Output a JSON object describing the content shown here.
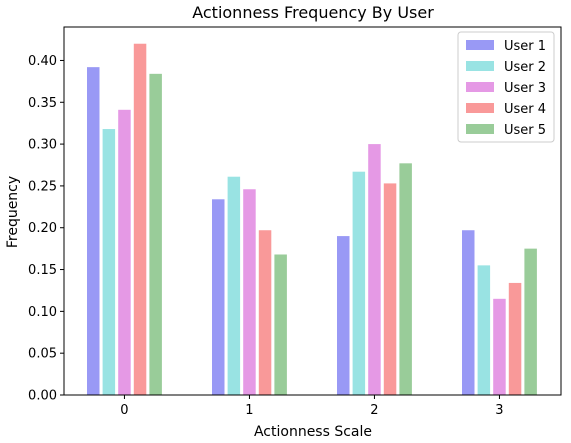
{
  "chart_data": {
    "type": "bar",
    "title": "Actionness Frequency By User",
    "xlabel": "Actionness Scale",
    "ylabel": "Frequency",
    "categories": [
      "0",
      "1",
      "2",
      "3"
    ],
    "ylim": [
      0,
      0.44
    ],
    "yticks": [
      "0.00",
      "0.05",
      "0.10",
      "0.15",
      "0.20",
      "0.25",
      "0.30",
      "0.35",
      "0.40"
    ],
    "grid": false,
    "legend_position": "top-right",
    "series": [
      {
        "name": "User 1",
        "color": "#9999f5",
        "values": [
          0.392,
          0.234,
          0.19,
          0.197
        ]
      },
      {
        "name": "User 2",
        "color": "#99e3e3",
        "values": [
          0.318,
          0.261,
          0.267,
          0.155
        ]
      },
      {
        "name": "User 3",
        "color": "#e599e5",
        "values": [
          0.341,
          0.246,
          0.3,
          0.115
        ]
      },
      {
        "name": "User 4",
        "color": "#f99999",
        "values": [
          0.42,
          0.197,
          0.253,
          0.134
        ]
      },
      {
        "name": "User 5",
        "color": "#99cc99",
        "values": [
          0.384,
          0.168,
          0.277,
          0.175
        ]
      }
    ]
  }
}
